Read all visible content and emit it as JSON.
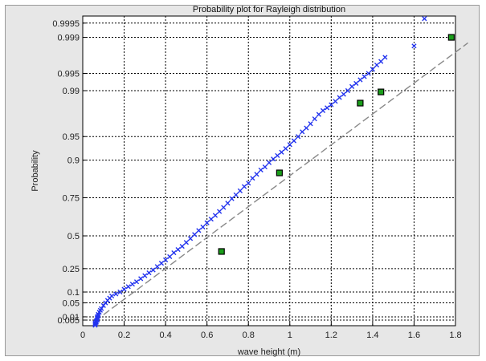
{
  "chart_data": {
    "type": "scatter",
    "title": "Probability plot for Rayleigh distribution",
    "xlabel": "wave height (m)",
    "ylabel": "Probability",
    "xlim": [
      0,
      1.8
    ],
    "x_ticks": [
      {
        "value": 0,
        "label": "0"
      },
      {
        "value": 0.2,
        "label": "0.2"
      },
      {
        "value": 0.4,
        "label": "0.4"
      },
      {
        "value": 0.6,
        "label": "0.6"
      },
      {
        "value": 0.8,
        "label": "0.8"
      },
      {
        "value": 1.0,
        "label": "1"
      },
      {
        "value": 1.2,
        "label": "1.2"
      },
      {
        "value": 1.4,
        "label": "1.4"
      },
      {
        "value": 1.6,
        "label": "1.6"
      },
      {
        "value": 1.8,
        "label": "1.8"
      }
    ],
    "y_scale": "rayleigh probability",
    "y_ticks": [
      {
        "value": 0.005,
        "label": "0.005"
      },
      {
        "value": 0.01,
        "label": "0.01"
      },
      {
        "value": 0.05,
        "label": "0.05"
      },
      {
        "value": 0.1,
        "label": "0.1"
      },
      {
        "value": 0.25,
        "label": "0.25"
      },
      {
        "value": 0.5,
        "label": "0.5"
      },
      {
        "value": 0.75,
        "label": "0.75"
      },
      {
        "value": 0.9,
        "label": "0.9"
      },
      {
        "value": 0.95,
        "label": "0.95"
      },
      {
        "value": 0.99,
        "label": "0.99"
      },
      {
        "value": 0.995,
        "label": "0.995"
      },
      {
        "value": 0.999,
        "label": "0.999"
      },
      {
        "value": 0.9995,
        "label": "0.9995"
      }
    ],
    "grid": true,
    "series": [
      {
        "marker": "x",
        "color": "#2233ee",
        "points": [
          [
            0.06,
            0.0006
          ],
          [
            0.06,
            0.001
          ],
          [
            0.06,
            0.0015
          ],
          [
            0.06,
            0.002
          ],
          [
            0.065,
            0.0025
          ],
          [
            0.065,
            0.003
          ],
          [
            0.065,
            0.004
          ],
          [
            0.07,
            0.005
          ],
          [
            0.07,
            0.006
          ],
          [
            0.07,
            0.008
          ],
          [
            0.07,
            0.01
          ],
          [
            0.075,
            0.012
          ],
          [
            0.075,
            0.015
          ],
          [
            0.08,
            0.02
          ],
          [
            0.085,
            0.025
          ],
          [
            0.09,
            0.03
          ],
          [
            0.1,
            0.04
          ],
          [
            0.11,
            0.05
          ],
          [
            0.12,
            0.06
          ],
          [
            0.13,
            0.07
          ],
          [
            0.14,
            0.08
          ],
          [
            0.16,
            0.09
          ],
          [
            0.18,
            0.1
          ],
          [
            0.2,
            0.115
          ],
          [
            0.22,
            0.13
          ],
          [
            0.24,
            0.145
          ],
          [
            0.26,
            0.16
          ],
          [
            0.28,
            0.18
          ],
          [
            0.3,
            0.2
          ],
          [
            0.32,
            0.22
          ],
          [
            0.34,
            0.24
          ],
          [
            0.36,
            0.265
          ],
          [
            0.38,
            0.29
          ],
          [
            0.4,
            0.315
          ],
          [
            0.42,
            0.34
          ],
          [
            0.44,
            0.37
          ],
          [
            0.46,
            0.395
          ],
          [
            0.48,
            0.42
          ],
          [
            0.5,
            0.45
          ],
          [
            0.52,
            0.48
          ],
          [
            0.54,
            0.51
          ],
          [
            0.56,
            0.54
          ],
          [
            0.58,
            0.565
          ],
          [
            0.6,
            0.595
          ],
          [
            0.62,
            0.62
          ],
          [
            0.64,
            0.645
          ],
          [
            0.66,
            0.67
          ],
          [
            0.68,
            0.695
          ],
          [
            0.7,
            0.72
          ],
          [
            0.72,
            0.745
          ],
          [
            0.74,
            0.765
          ],
          [
            0.76,
            0.785
          ],
          [
            0.78,
            0.805
          ],
          [
            0.8,
            0.82
          ],
          [
            0.82,
            0.84
          ],
          [
            0.84,
            0.855
          ],
          [
            0.86,
            0.87
          ],
          [
            0.88,
            0.88
          ],
          [
            0.9,
            0.893
          ],
          [
            0.92,
            0.903
          ],
          [
            0.94,
            0.912
          ],
          [
            0.96,
            0.92
          ],
          [
            0.98,
            0.928
          ],
          [
            1.0,
            0.936
          ],
          [
            1.02,
            0.943
          ],
          [
            1.04,
            0.95
          ],
          [
            1.06,
            0.957
          ],
          [
            1.08,
            0.962
          ],
          [
            1.1,
            0.967
          ],
          [
            1.12,
            0.972
          ],
          [
            1.14,
            0.976
          ],
          [
            1.16,
            0.979
          ],
          [
            1.18,
            0.981
          ],
          [
            1.2,
            0.983
          ],
          [
            1.22,
            0.985
          ],
          [
            1.24,
            0.987
          ],
          [
            1.26,
            0.9885
          ],
          [
            1.28,
            0.99
          ],
          [
            1.3,
            0.9915
          ],
          [
            1.32,
            0.9925
          ],
          [
            1.34,
            0.9935
          ],
          [
            1.36,
            0.9943
          ],
          [
            1.38,
            0.995
          ],
          [
            1.4,
            0.9958
          ],
          [
            1.42,
            0.9965
          ],
          [
            1.44,
            0.997
          ],
          [
            1.46,
            0.9975
          ],
          [
            1.6,
            0.9985
          ],
          [
            1.65,
            0.9996
          ]
        ]
      },
      {
        "marker": "square",
        "color": "#1a9e1a",
        "points": [
          [
            0.67,
            0.38
          ],
          [
            0.95,
            0.86
          ],
          [
            1.34,
            0.984
          ],
          [
            1.44,
            0.9895
          ],
          [
            1.78,
            0.999
          ]
        ]
      }
    ],
    "reference_line": {
      "style": "dashed",
      "color": "#888888",
      "points": [
        [
          0.06,
          0.004
        ],
        [
          1.86,
          0.9987
        ]
      ]
    }
  }
}
